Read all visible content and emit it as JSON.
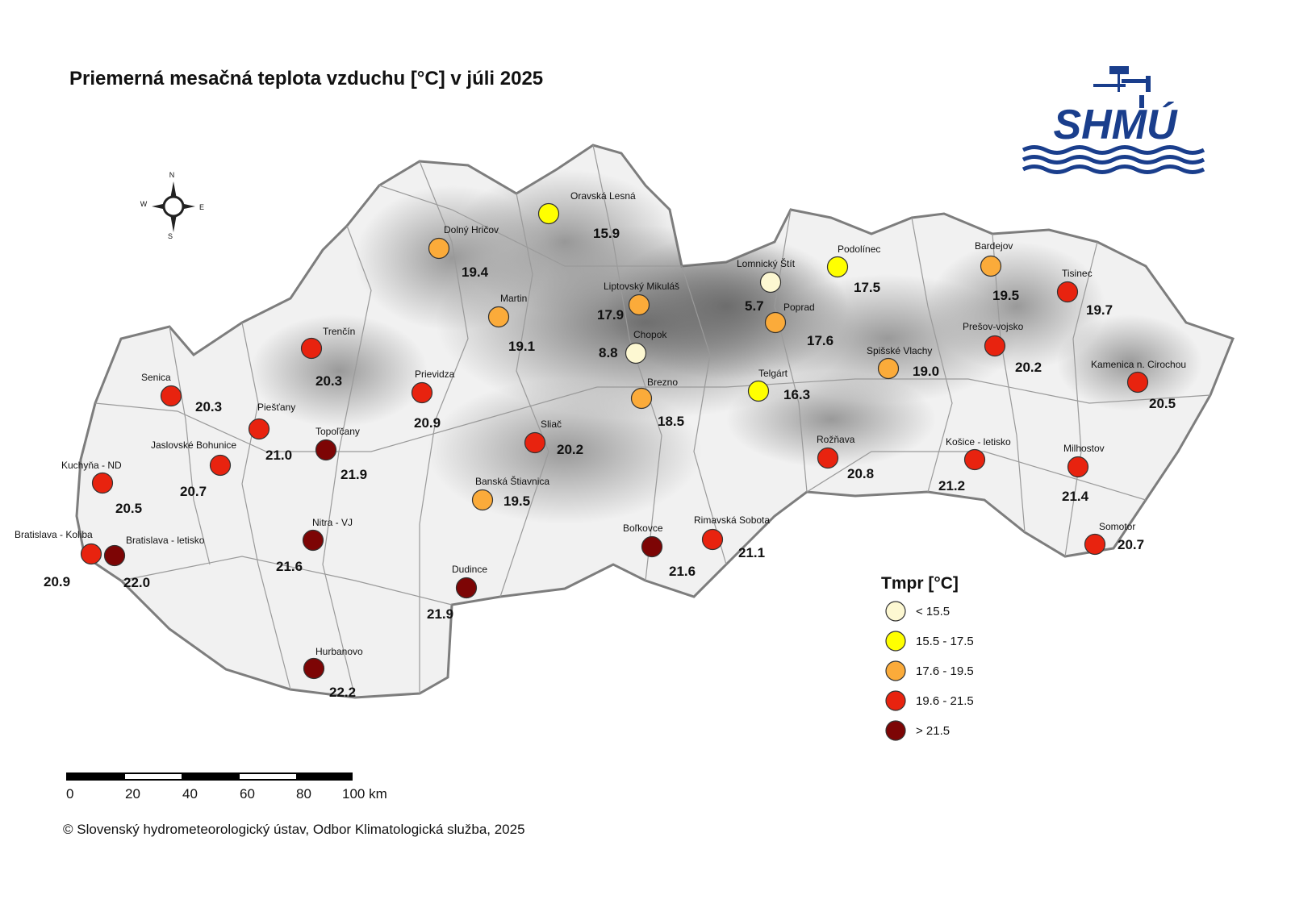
{
  "title": "Priemerná mesačná teplota vzduchu [°C] v júli 2025",
  "copyright": "© Slovenský hydrometeorologický ústav, Odbor Klimatologická služba, 2025",
  "logo": {
    "text": "SHMÚ",
    "color": "#1a3e8c"
  },
  "compass": {
    "n": "N",
    "s": "S",
    "e": "E",
    "w": "W"
  },
  "legend": {
    "title": "Tmpr [°C]",
    "classes": [
      {
        "label": "< 15.5",
        "color": "#fdf8d2"
      },
      {
        "label": "15.5 - 17.5",
        "color": "#ffff00"
      },
      {
        "label": "17.6 - 19.5",
        "color": "#fbab3a"
      },
      {
        "label": "19.6 - 21.5",
        "color": "#e8230f"
      },
      {
        "label": "> 21.5",
        "color": "#7d0505"
      }
    ]
  },
  "scale_bar": {
    "ticks": [
      "0",
      "20",
      "40",
      "60",
      "80",
      "100 km"
    ]
  },
  "stations": [
    {
      "name": "Oravská Lesná",
      "value": "15.9"
    },
    {
      "name": "Dolný Hričov",
      "value": "19.4"
    },
    {
      "name": "Martin",
      "value": "19.1"
    },
    {
      "name": "Liptovský Mikuláš",
      "value": "17.9"
    },
    {
      "name": "Chopok",
      "value": "8.8"
    },
    {
      "name": "Lomnický Štít",
      "value": "5.7"
    },
    {
      "name": "Podolínec",
      "value": "17.5"
    },
    {
      "name": "Poprad",
      "value": "17.6"
    },
    {
      "name": "Bardejov",
      "value": "19.5"
    },
    {
      "name": "Tisinec",
      "value": "19.7"
    },
    {
      "name": "Prešov-vojsko",
      "value": "20.2"
    },
    {
      "name": "Spišské Vlachy",
      "value": "19.0"
    },
    {
      "name": "Telgárt",
      "value": "16.3"
    },
    {
      "name": "Brezno",
      "value": "18.5"
    },
    {
      "name": "Trenčín",
      "value": "20.3"
    },
    {
      "name": "Senica",
      "value": "20.3"
    },
    {
      "name": "Prievidza",
      "value": "20.9"
    },
    {
      "name": "Piešťany",
      "value": "21.0"
    },
    {
      "name": "Topoľčany",
      "value": "21.9"
    },
    {
      "name": "Jaslovské Bohunice",
      "value": "20.7"
    },
    {
      "name": "Kuchyňa - ND",
      "value": "20.5"
    },
    {
      "name": "Sliač",
      "value": "20.2"
    },
    {
      "name": "Banská Štiavnica",
      "value": "19.5"
    },
    {
      "name": "Kamenica n. Cirochou",
      "value": "20.5"
    },
    {
      "name": "Rožňava",
      "value": "20.8"
    },
    {
      "name": "Košice - letisko",
      "value": "21.2"
    },
    {
      "name": "Milhostov",
      "value": "21.4"
    },
    {
      "name": "Somotor",
      "value": "20.7"
    },
    {
      "name": "Bratislava - Koliba",
      "value": "20.9"
    },
    {
      "name": "Bratislava - letisko",
      "value": "22.0"
    },
    {
      "name": "Nitra - VJ",
      "value": "21.6"
    },
    {
      "name": "Dudince",
      "value": "21.9"
    },
    {
      "name": "Boľkovce",
      "value": "21.6"
    },
    {
      "name": "Rimavská Sobota",
      "value": "21.1"
    },
    {
      "name": "Hurbanovo",
      "value": "22.2"
    }
  ]
}
